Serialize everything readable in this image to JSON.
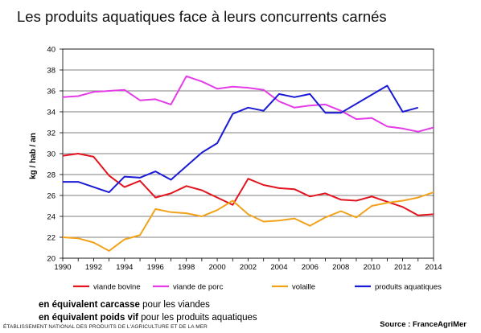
{
  "title": "Les produits aquatiques face à leurs concurrents carnés",
  "notes": {
    "line1_bold": "en équivalent carcasse",
    "line1_rest": " pour les viandes",
    "line2_bold": "en équivalent poids vif",
    "line2_rest": " pour les produits aquatiques"
  },
  "footer": {
    "left": "ÉTABLISSEMENT NATIONAL DES PRODUITS DE L'AGRICULTURE ET DE LA MER",
    "source": "Source : FranceAgriMer"
  },
  "chart_data": {
    "type": "line",
    "ylabel": "kg / hab / an",
    "xlabel": "",
    "xlim": [
      1990,
      2014
    ],
    "ylim": [
      20,
      40
    ],
    "x_ticks": [
      1990,
      1992,
      1994,
      1996,
      1998,
      2000,
      2002,
      2004,
      2006,
      2008,
      2010,
      2012,
      2014
    ],
    "y_ticks": [
      20,
      22,
      24,
      26,
      28,
      30,
      32,
      34,
      36,
      38,
      40
    ],
    "grid": "horizontal",
    "legend_position": "bottom",
    "x": [
      1990,
      1991,
      1992,
      1993,
      1994,
      1995,
      1996,
      1997,
      1998,
      1999,
      2000,
      2001,
      2002,
      2003,
      2004,
      2005,
      2006,
      2007,
      2008,
      2009,
      2010,
      2011,
      2012,
      2013,
      2014
    ],
    "series": [
      {
        "name": "viande bovine",
        "color": "#e3141e",
        "values": [
          29.8,
          30.0,
          29.7,
          27.9,
          26.8,
          27.4,
          25.8,
          26.2,
          26.9,
          26.5,
          25.8,
          25.1,
          27.6,
          27.0,
          26.7,
          26.6,
          25.9,
          26.2,
          25.6,
          25.5,
          25.9,
          25.4,
          24.9,
          24.1,
          24.2
        ]
      },
      {
        "name": "viande de porc",
        "color": "#e43ce7",
        "values": [
          35.4,
          35.5,
          35.9,
          36.0,
          36.1,
          35.1,
          35.2,
          34.7,
          37.4,
          36.9,
          36.2,
          36.4,
          36.3,
          36.1,
          35.0,
          34.4,
          34.6,
          34.7,
          34.1,
          33.3,
          33.4,
          32.6,
          32.4,
          32.1,
          32.5
        ]
      },
      {
        "name": "volaille",
        "color": "#f2a21a",
        "values": [
          22.0,
          21.9,
          21.5,
          20.7,
          21.8,
          22.2,
          24.7,
          24.4,
          24.3,
          24.0,
          24.6,
          25.5,
          24.2,
          23.5,
          23.6,
          23.8,
          23.1,
          23.9,
          24.5,
          23.9,
          25.0,
          25.3,
          25.5,
          25.8,
          26.3
        ]
      },
      {
        "name": "produits aquatiques",
        "color": "#1a1ad6",
        "values": [
          27.3,
          27.3,
          26.8,
          26.3,
          27.8,
          27.7,
          28.3,
          27.5,
          28.8,
          30.1,
          31.0,
          33.8,
          34.4,
          34.1,
          35.7,
          35.4,
          35.7,
          33.9,
          33.9,
          null,
          null,
          36.5,
          34.0,
          34.4,
          null
        ]
      }
    ]
  }
}
